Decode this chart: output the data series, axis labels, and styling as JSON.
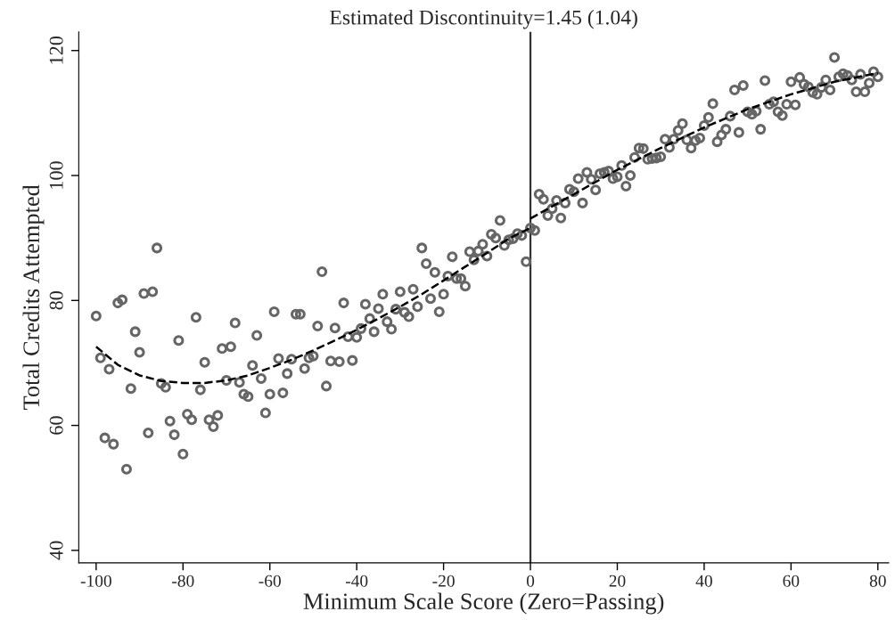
{
  "chart_data": {
    "type": "scatter",
    "title": "Estimated Discontinuity=1.45 (1.04)",
    "xlabel": "Minimum Scale Score (Zero=Passing)",
    "ylabel": "Total Credits Attempted",
    "xlim": [
      -104,
      82.5
    ],
    "ylim": [
      38,
      123
    ],
    "xticks": [
      -100,
      -80,
      -60,
      -40,
      -20,
      0,
      20,
      40,
      60,
      80
    ],
    "yticks": [
      40,
      60,
      80,
      100,
      120
    ],
    "grid": false,
    "ref_lines": [
      {
        "axis": "x",
        "value": 0,
        "color": "#333333",
        "line_style": "solid"
      }
    ],
    "series": [
      {
        "color": "#666666",
        "marker": "circle",
        "x": [
          -100,
          -99,
          -98,
          -97,
          -96,
          -95,
          -94,
          -93,
          -92,
          -91,
          -90,
          -89,
          -88,
          -87,
          -86,
          -85,
          -84,
          -83,
          -82,
          -81,
          -80,
          -79,
          -78,
          -77,
          -76,
          -75,
          -74,
          -73,
          -72,
          -71,
          -70,
          -69,
          -68,
          -67,
          -66,
          -65,
          -64,
          -63,
          -62,
          -61,
          -60,
          -59,
          -58,
          -57,
          -56,
          -55,
          -54,
          -53,
          -52,
          -51,
          -50,
          -49,
          -48,
          -47,
          -46,
          -45,
          -44,
          -43,
          -42,
          -41,
          -40,
          -39,
          -38,
          -37,
          -36,
          -35,
          -34,
          -33,
          -32,
          -31,
          -30,
          -29,
          -28,
          -27,
          -26,
          -25,
          -24,
          -23,
          -22,
          -21,
          -20,
          -19,
          -18,
          -17,
          -16,
          -15,
          -14,
          -13,
          -12,
          -11,
          -10,
          -9,
          -8,
          -7,
          -6,
          -5,
          -4,
          -3,
          -2,
          -1,
          0,
          1,
          2,
          3,
          4,
          5,
          6,
          7,
          8,
          9,
          10,
          11,
          12,
          13,
          14,
          15,
          16,
          17,
          18,
          19,
          20,
          21,
          22,
          23,
          24,
          25,
          26,
          27,
          28,
          29,
          30,
          31,
          32,
          33,
          34,
          35,
          36,
          37,
          38,
          39,
          40,
          41,
          42,
          43,
          44,
          45,
          46,
          47,
          48,
          49,
          50,
          51,
          52,
          53,
          54,
          55,
          56,
          57,
          58,
          59,
          60,
          61,
          62,
          63,
          64,
          65,
          66,
          67,
          68,
          69,
          70,
          71,
          72,
          73,
          74,
          75,
          76,
          77,
          78,
          79,
          80
        ],
        "values": [
          77.5,
          70.8,
          58,
          69,
          57,
          79.6,
          80.1,
          53,
          65.9,
          75,
          71.7,
          81.1,
          58.8,
          81.4,
          88.4,
          66.7,
          66.1,
          60.7,
          58.5,
          73.6,
          55.4,
          61.8,
          60.9,
          77.3,
          65.7,
          70.1,
          60.9,
          59.8,
          61.6,
          72.3,
          67.2,
          72.6,
          76.4,
          66.9,
          65,
          64.6,
          69.6,
          74.4,
          67.5,
          62,
          65,
          78.2,
          70.7,
          65.2,
          68.3,
          70.6,
          77.8,
          77.8,
          69.1,
          70.8,
          71.1,
          75.9,
          84.6,
          66.3,
          70.3,
          75.6,
          70.2,
          79.6,
          74.2,
          70.4,
          74.1,
          75.5,
          79.4,
          77.1,
          75,
          78.7,
          81,
          76.6,
          75.4,
          78.6,
          81.4,
          78.1,
          77.4,
          81.8,
          79,
          88.4,
          85.9,
          80.3,
          84.5,
          78.2,
          81,
          83.9,
          87,
          83.5,
          83.5,
          82.3,
          87.8,
          86.5,
          87.9,
          89,
          87.1,
          90.6,
          90,
          92.8,
          88.8,
          89.7,
          89.9,
          90.7,
          90.4,
          86.2,
          91.6,
          91.2,
          97,
          96.2,
          93.6,
          94.7,
          96,
          93.2,
          95.6,
          97.8,
          97.4,
          99.5,
          95.6,
          100.5,
          99.4,
          97.7,
          100.3,
          100.5,
          100.7,
          99.5,
          99.8,
          101.6,
          98.3,
          100,
          102.9,
          104.4,
          104.3,
          102.6,
          102.7,
          102.8,
          103,
          105.8,
          104.5,
          105.8,
          107.2,
          108.3,
          105.7,
          104.4,
          105.6,
          106,
          108,
          109.3,
          111.5,
          105.4,
          106.5,
          107.4,
          109.5,
          113.7,
          106.9,
          114.4,
          110.2,
          109.8,
          110.3,
          107.4,
          115.2,
          111.4,
          111.8,
          110.2,
          109.6,
          111.4,
          115,
          111.3,
          115.7,
          114.6,
          114.2,
          113.3,
          113,
          114.1,
          115.3,
          113.7,
          118.9,
          115.8,
          116.3,
          116,
          115.3,
          113.4,
          116.2,
          113.4,
          114.8,
          116.6,
          115.8
        ]
      },
      {
        "type": "line",
        "color": "#000000",
        "line_style": "dashed",
        "marker": "none",
        "x": [
          -100,
          -95,
          -90,
          -85,
          -80,
          -75,
          -70,
          -65,
          -60,
          -55,
          -50,
          -45,
          -40,
          -35,
          -30,
          -25,
          -20,
          -15,
          -10,
          -5,
          0
        ],
        "values": [
          72.6,
          69.7,
          68,
          67.1,
          66.8,
          66.8,
          67.2,
          68,
          69.2,
          70.5,
          72,
          73.6,
          75.3,
          77.1,
          79,
          81,
          83.2,
          85.4,
          87.6,
          89.9,
          91.6
        ]
      },
      {
        "type": "line",
        "color": "#000000",
        "line_style": "dashed",
        "marker": "none",
        "x": [
          0,
          10,
          20,
          30,
          40,
          50,
          60,
          70,
          80
        ],
        "values": [
          93.1,
          97,
          100.9,
          104.4,
          107.7,
          110.6,
          113,
          115,
          116.4
        ]
      }
    ]
  }
}
